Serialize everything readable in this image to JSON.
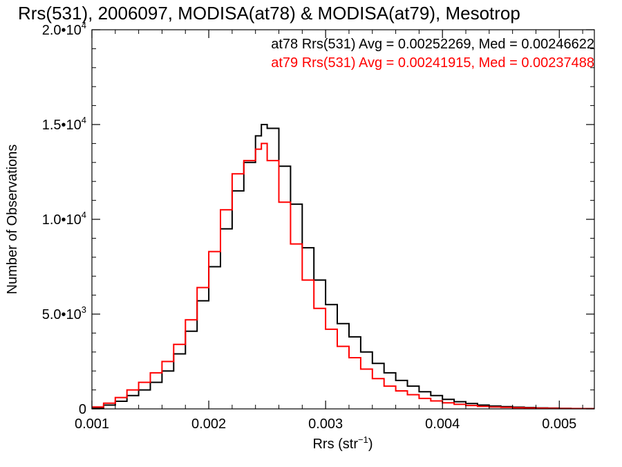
{
  "chart_data": {
    "type": "line",
    "title": "Rrs(531), 2006097, MODISA(at78) & MODISA(at79), Mesotrop",
    "xlabel": "Rrs (str",
    "xlabel_sup": "−1",
    "xlabel_close": ")",
    "ylabel": "Number of Observations",
    "xlim": [
      0.001,
      0.0053
    ],
    "ylim": [
      0,
      20000
    ],
    "grid": false,
    "legend_position": "top-right",
    "x_ticks": [
      {
        "value": 0.001,
        "label": "0.001"
      },
      {
        "value": 0.002,
        "label": "0.002"
      },
      {
        "value": 0.003,
        "label": "0.003"
      },
      {
        "value": 0.004,
        "label": "0.004"
      },
      {
        "value": 0.005,
        "label": "0.005"
      }
    ],
    "y_ticks": [
      {
        "value": 0,
        "mantissa": "0",
        "exp": ""
      },
      {
        "value": 5000,
        "mantissa": "5.0•10",
        "exp": "3"
      },
      {
        "value": 10000,
        "mantissa": "1.0•10",
        "exp": "4"
      },
      {
        "value": 15000,
        "mantissa": "1.5•10",
        "exp": "4"
      },
      {
        "value": 20000,
        "mantissa": "2.0•10",
        "exp": "4"
      }
    ],
    "series": [
      {
        "name": "at78",
        "color": "#000000",
        "annotation": "at78 Rrs(531) Avg = 0.00252269, Med = 0.00246622",
        "x": [
          0.001,
          0.0011,
          0.0012,
          0.0013,
          0.0014,
          0.0015,
          0.0016,
          0.0017,
          0.0018,
          0.0019,
          0.002,
          0.0021,
          0.0022,
          0.0023,
          0.0024,
          0.00245,
          0.0025,
          0.0026,
          0.0027,
          0.0028,
          0.0029,
          0.003,
          0.0031,
          0.0032,
          0.0033,
          0.0034,
          0.0035,
          0.0036,
          0.0037,
          0.0038,
          0.0039,
          0.004,
          0.0041,
          0.0042,
          0.0043,
          0.0044,
          0.0045,
          0.0046,
          0.0047,
          0.0048,
          0.0049,
          0.005,
          0.0051,
          0.0052,
          0.0053
        ],
        "y": [
          50,
          200,
          400,
          700,
          1000,
          1400,
          2000,
          2900,
          4100,
          5700,
          7500,
          9500,
          11500,
          13000,
          14400,
          15000,
          14800,
          12800,
          10800,
          8500,
          6800,
          5500,
          4500,
          3800,
          3000,
          2400,
          1900,
          1500,
          1200,
          900,
          700,
          500,
          380,
          280,
          200,
          150,
          120,
          90,
          70,
          50,
          40,
          30,
          20,
          15,
          10
        ]
      },
      {
        "name": "at79",
        "color": "#ff0000",
        "annotation": "at79 Rrs(531) Avg = 0.00241915, Med = 0.00237488",
        "x": [
          0.001,
          0.0011,
          0.0012,
          0.0013,
          0.0014,
          0.0015,
          0.0016,
          0.0017,
          0.0018,
          0.0019,
          0.002,
          0.0021,
          0.0022,
          0.0023,
          0.0024,
          0.00245,
          0.0025,
          0.0026,
          0.0027,
          0.0028,
          0.0029,
          0.003,
          0.0031,
          0.0032,
          0.0033,
          0.0034,
          0.0035,
          0.0036,
          0.0037,
          0.0038,
          0.0039,
          0.004,
          0.0041,
          0.0042,
          0.0043,
          0.0044,
          0.0045,
          0.0046,
          0.0047,
          0.0048,
          0.0049,
          0.005,
          0.0051,
          0.0052,
          0.0053
        ],
        "y": [
          100,
          300,
          600,
          1000,
          1400,
          1900,
          2500,
          3400,
          4700,
          6400,
          8300,
          10500,
          12400,
          13100,
          13700,
          14000,
          13100,
          10900,
          8700,
          6800,
          5300,
          4200,
          3300,
          2700,
          2100,
          1600,
          1200,
          950,
          750,
          550,
          420,
          320,
          240,
          180,
          130,
          100,
          80,
          60,
          45,
          35,
          25,
          20,
          15,
          10,
          8
        ]
      }
    ]
  }
}
